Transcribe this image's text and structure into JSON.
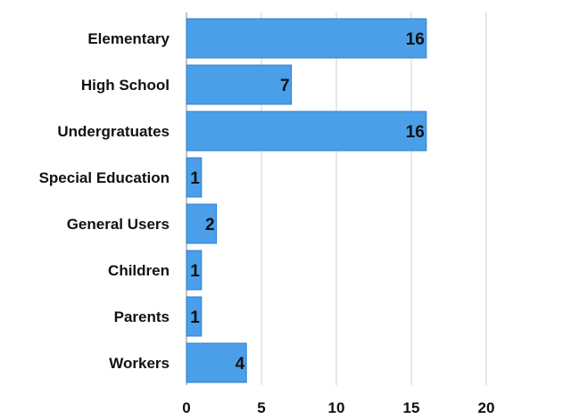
{
  "chart_data": {
    "type": "bar",
    "orientation": "horizontal",
    "title": "",
    "xlabel": "",
    "ylabel": "",
    "categories": [
      "Elementary",
      "High School",
      "Undergratuates",
      "Special Education",
      "General Users",
      "Children",
      "Parents",
      "Workers"
    ],
    "values": [
      16,
      7,
      16,
      1,
      2,
      1,
      1,
      4
    ],
    "value_labels": [
      "16",
      "7",
      "16",
      "1",
      "2",
      "1",
      "1",
      "4"
    ],
    "xlim": [
      0,
      20
    ],
    "xticks": [
      0,
      5,
      10,
      15,
      20
    ],
    "xtick_labels": [
      "0",
      "5",
      "10",
      "15",
      "20"
    ],
    "grid": "vertical",
    "legend": "none",
    "colors": {
      "bar": "#4a9fe8",
      "bar_edge": "#2f7fd0",
      "grid": "#d2d2d2",
      "text": "#111111"
    }
  }
}
